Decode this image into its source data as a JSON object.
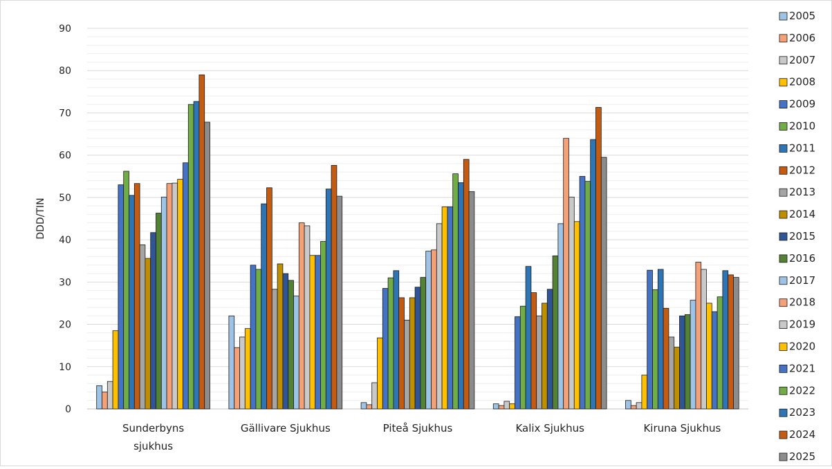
{
  "chart_data": {
    "type": "bar",
    "title": "",
    "xlabel": "",
    "ylabel": "DDD/TIN",
    "ylim": [
      0,
      90
    ],
    "yticks": [
      0,
      10,
      20,
      30,
      40,
      50,
      60,
      70,
      80,
      90
    ],
    "ytick_labels": [
      "0",
      "10",
      "20",
      "30",
      "40",
      "50",
      "60",
      "70",
      "80",
      "90"
    ],
    "grid": true,
    "legend_position": "right",
    "categories": [
      [
        "Sunderbyns",
        "sjukhus"
      ],
      [
        "Gällivare Sjukhus"
      ],
      [
        "Piteå  Sjukhus"
      ],
      [
        "Kalix Sjukhus"
      ],
      [
        "Kiruna Sjukhus"
      ]
    ],
    "series": [
      {
        "name": "2005",
        "color": "#9DC3E6",
        "values": [
          5.5,
          22.0,
          1.5,
          1.2,
          2.0
        ]
      },
      {
        "name": "2006",
        "color": "#F4A178",
        "values": [
          4.0,
          14.5,
          1.0,
          0.8,
          0.8
        ]
      },
      {
        "name": "2007",
        "color": "#C9C9C9",
        "values": [
          6.5,
          17.0,
          6.2,
          1.8,
          1.5
        ]
      },
      {
        "name": "2008",
        "color": "#FFC000",
        "values": [
          18.5,
          19.0,
          16.8,
          1.2,
          8.0
        ]
      },
      {
        "name": "2009",
        "color": "#4472C4",
        "values": [
          53.0,
          34.0,
          28.5,
          21.8,
          32.8
        ]
      },
      {
        "name": "2010",
        "color": "#70AD47",
        "values": [
          56.2,
          33.0,
          31.0,
          24.3,
          28.2
        ]
      },
      {
        "name": "2011",
        "color": "#2E75B6",
        "values": [
          50.5,
          48.5,
          32.7,
          33.7,
          33.0
        ]
      },
      {
        "name": "2012",
        "color": "#C55A11",
        "values": [
          53.3,
          52.3,
          26.3,
          27.5,
          23.8
        ]
      },
      {
        "name": "2013",
        "color": "#A5A5A5",
        "values": [
          38.8,
          28.3,
          21.0,
          22.0,
          17.0
        ]
      },
      {
        "name": "2014",
        "color": "#BF8F00",
        "values": [
          35.6,
          34.3,
          26.3,
          25.0,
          14.6
        ]
      },
      {
        "name": "2015",
        "color": "#2F5597",
        "values": [
          41.7,
          32.0,
          28.8,
          28.3,
          22.0
        ]
      },
      {
        "name": "2016",
        "color": "#548235",
        "values": [
          46.3,
          30.4,
          31.1,
          36.2,
          22.3
        ]
      },
      {
        "name": "2017",
        "color": "#9DC3E6",
        "values": [
          50.1,
          26.7,
          37.3,
          43.8,
          25.7
        ]
      },
      {
        "name": "2018",
        "color": "#F4A178",
        "values": [
          53.3,
          44.0,
          37.6,
          64.0,
          34.7
        ]
      },
      {
        "name": "2019",
        "color": "#C9C9C9",
        "values": [
          53.4,
          43.3,
          43.8,
          50.1,
          33.0
        ]
      },
      {
        "name": "2020",
        "color": "#FFC000",
        "values": [
          54.3,
          36.3,
          47.8,
          44.3,
          25.0
        ]
      },
      {
        "name": "2021",
        "color": "#4472C4",
        "values": [
          58.2,
          36.3,
          47.8,
          55.0,
          23.0
        ]
      },
      {
        "name": "2022",
        "color": "#70AD47",
        "values": [
          72.0,
          39.6,
          55.6,
          53.8,
          26.5
        ]
      },
      {
        "name": "2023",
        "color": "#2E75B6",
        "values": [
          72.7,
          52.0,
          53.5,
          63.7,
          32.7
        ]
      },
      {
        "name": "2024",
        "color": "#C55A11",
        "values": [
          79.0,
          57.6,
          59.0,
          71.3,
          31.7
        ]
      },
      {
        "name": "2025",
        "color": "#8C8C8C",
        "values": [
          67.8,
          50.3,
          51.4,
          59.5,
          31.1
        ]
      }
    ]
  }
}
